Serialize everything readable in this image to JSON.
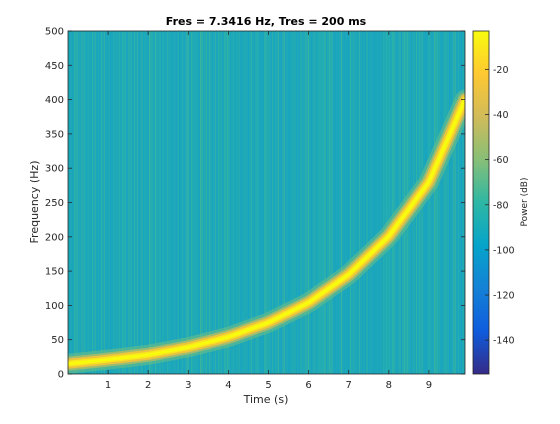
{
  "chart_data": {
    "type": "heatmap",
    "title": "Fres = 7.3416 Hz, Tres = 200 ms",
    "xlabel": "Time (s)",
    "ylabel": "Frequency (Hz)",
    "xlim": [
      0,
      9.9
    ],
    "ylim": [
      0,
      500
    ],
    "xticks": [
      1,
      2,
      3,
      4,
      5,
      6,
      7,
      8,
      9
    ],
    "yticks": [
      0,
      50,
      100,
      150,
      200,
      250,
      300,
      350,
      400,
      450,
      500
    ],
    "colorbar": {
      "label": "Power (dB)",
      "range": [
        -155,
        -3
      ],
      "ticks": [
        -20,
        -40,
        -60,
        -80,
        -100,
        -120,
        -140
      ],
      "colormap": "parula",
      "colors": [
        "#352a87",
        "#0f5cdd",
        "#1481d6",
        "#06a4ca",
        "#2eb7a4",
        "#87bf77",
        "#d1bb59",
        "#fec832",
        "#f9fb0e"
      ]
    },
    "background_level_db": -80,
    "ridge": {
      "description_points_time": [
        0,
        1,
        2,
        3,
        4,
        5,
        6,
        7,
        8,
        9,
        9.9
      ],
      "frequency_hz": [
        15,
        21,
        28,
        39,
        54,
        75,
        104,
        145,
        201,
        280,
        400
      ],
      "peak_db": -3
    }
  }
}
